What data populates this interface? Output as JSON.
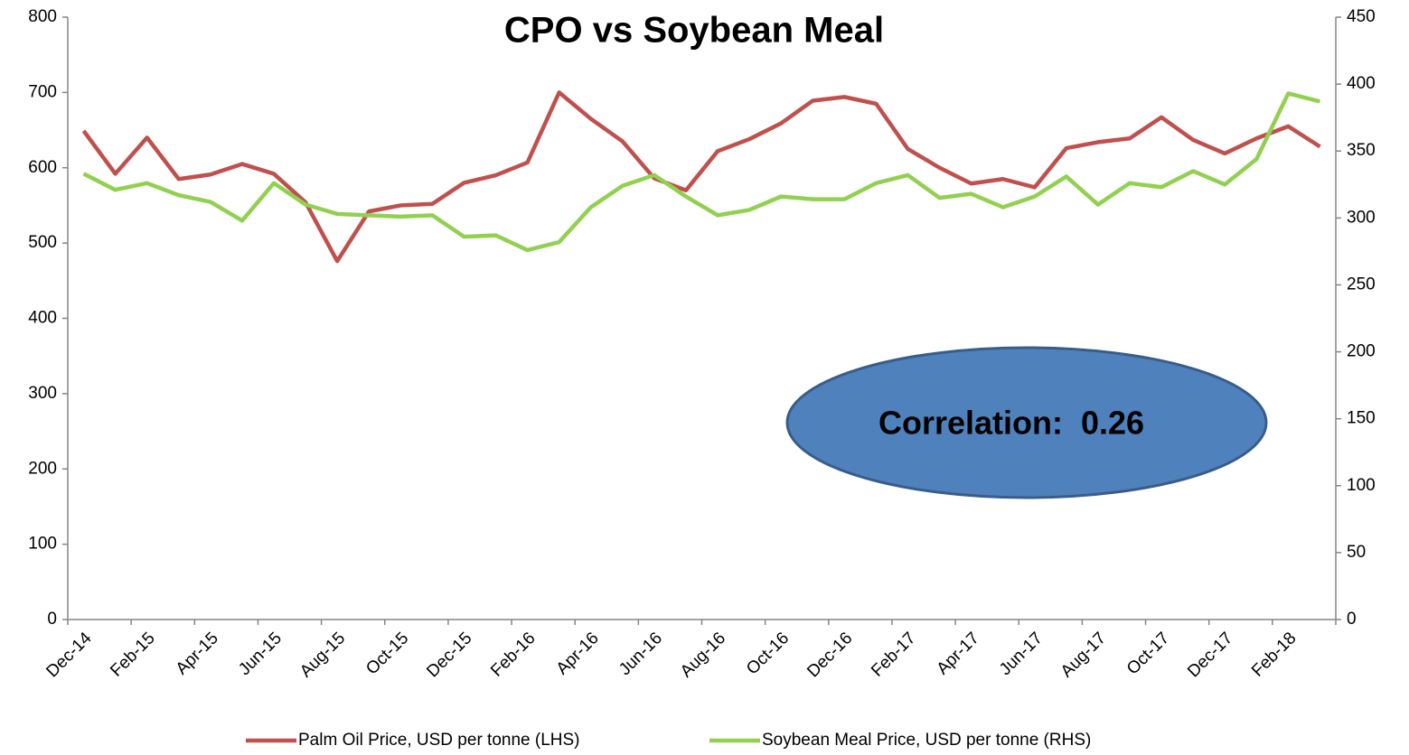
{
  "chart_data": {
    "type": "line",
    "title": "CPO vs Soybean Meal",
    "categories": [
      "Dec-14",
      null,
      "Feb-15",
      null,
      "Apr-15",
      null,
      "Jun-15",
      null,
      "Aug-15",
      null,
      "Oct-15",
      null,
      "Dec-15",
      null,
      "Feb-16",
      null,
      "Apr-16",
      null,
      "Jun-16",
      null,
      "Aug-16",
      null,
      "Oct-16",
      null,
      "Dec-16",
      null,
      "Feb-17",
      null,
      "Apr-17",
      null,
      "Jun-17",
      null,
      "Aug-17",
      null,
      "Oct-17",
      null,
      "Dec-17",
      null,
      "Feb-18",
      null
    ],
    "series": [
      {
        "name": "Palm Oil Price, USD per tonne (LHS)",
        "color": "#c0504d",
        "axis": "y",
        "values": [
          649,
          592,
          640,
          585,
          591,
          605,
          592,
          554,
          476,
          542,
          550,
          552,
          580,
          590,
          607,
          700,
          665,
          635,
          586,
          570,
          622,
          638,
          659,
          689,
          694,
          685,
          625,
          600,
          579,
          585,
          574,
          626,
          634,
          639,
          667,
          637,
          619,
          639,
          655,
          628
        ]
      },
      {
        "name": "Soybean Meal Price, USD per tonne (RHS)",
        "color": "#92d050",
        "axis": "y2",
        "values": [
          333,
          321,
          326,
          317,
          312,
          298,
          326,
          310,
          303,
          302,
          301,
          302,
          286,
          287,
          276,
          282,
          308,
          324,
          332,
          316,
          302,
          306,
          316,
          314,
          314,
          326,
          332,
          315,
          318,
          308,
          316,
          331,
          310,
          326,
          323,
          335,
          325,
          344,
          393,
          387
        ]
      }
    ],
    "ylim": [
      0,
      800
    ],
    "yticks": [
      0,
      100,
      200,
      300,
      400,
      500,
      600,
      700,
      800
    ],
    "y2lim": [
      0,
      450
    ],
    "y2ticks": [
      0,
      50,
      100,
      150,
      200,
      250,
      300,
      350,
      400,
      450
    ],
    "annotation": "Correlation:  0.26",
    "legend": "bottom",
    "grid": false
  }
}
